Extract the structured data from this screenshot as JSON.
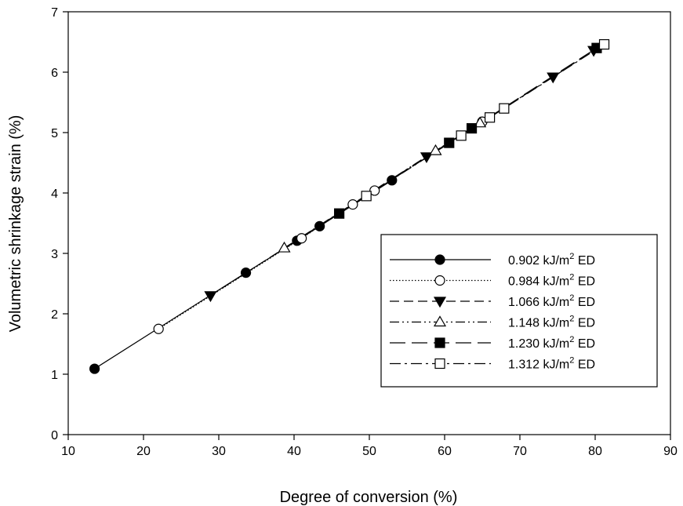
{
  "chart_data": {
    "type": "line",
    "title": "",
    "xlabel": "Degree of conversion (%)",
    "ylabel": "Volumetric shrinkage strain (%)",
    "xlim": [
      10,
      90
    ],
    "ylim": [
      0,
      7
    ],
    "xticks": [
      "10",
      "20",
      "30",
      "40",
      "50",
      "60",
      "70",
      "80",
      "90"
    ],
    "yticks": [
      "0",
      "1",
      "2",
      "3",
      "4",
      "5",
      "6",
      "7"
    ],
    "grid": false,
    "legend_position": "center-right",
    "series": [
      {
        "name": "0.902 kJ/m",
        "name_sup": "2",
        "name_suffix": " ED",
        "marker": "filled-circle",
        "line_style": "solid",
        "points": [
          [
            13.5,
            1.09
          ],
          [
            33.6,
            2.68
          ],
          [
            40.4,
            3.21
          ],
          [
            43.4,
            3.45
          ],
          [
            53.0,
            4.21
          ]
        ]
      },
      {
        "name": "0.984 kJ/m",
        "name_sup": "2",
        "name_suffix": " ED",
        "marker": "open-circle",
        "line_style": "dotted",
        "points": [
          [
            22.0,
            1.75
          ],
          [
            41.0,
            3.25
          ],
          [
            47.8,
            3.81
          ],
          [
            50.7,
            4.04
          ],
          [
            65.0,
            5.18
          ]
        ]
      },
      {
        "name": "1.066 kJ/m",
        "name_sup": "2",
        "name_suffix": " ED",
        "marker": "filled-triangle-down",
        "line_style": "dashed",
        "points": [
          [
            28.9,
            2.3
          ],
          [
            57.6,
            4.6
          ],
          [
            74.4,
            5.92
          ],
          [
            79.8,
            6.36
          ]
        ]
      },
      {
        "name": "1.148 kJ/m",
        "name_sup": "2",
        "name_suffix": " ED",
        "marker": "open-triangle-up",
        "line_style": "dash-dot-dot",
        "points": [
          [
            38.7,
            3.09
          ],
          [
            58.8,
            4.7
          ],
          [
            64.7,
            5.16
          ]
        ]
      },
      {
        "name": "1.230 kJ/m",
        "name_sup": "2",
        "name_suffix": " ED",
        "marker": "filled-square",
        "line_style": "long-dash",
        "points": [
          [
            46.0,
            3.66
          ],
          [
            60.6,
            4.83
          ],
          [
            63.6,
            5.07
          ],
          [
            80.2,
            6.4
          ]
        ]
      },
      {
        "name": "1.312 kJ/m",
        "name_sup": "2",
        "name_suffix": " ED",
        "marker": "open-square",
        "line_style": "dash-dot",
        "points": [
          [
            49.6,
            3.95
          ],
          [
            62.2,
            4.95
          ],
          [
            66.0,
            5.25
          ],
          [
            67.9,
            5.4
          ],
          [
            81.2,
            6.46
          ]
        ]
      }
    ]
  }
}
